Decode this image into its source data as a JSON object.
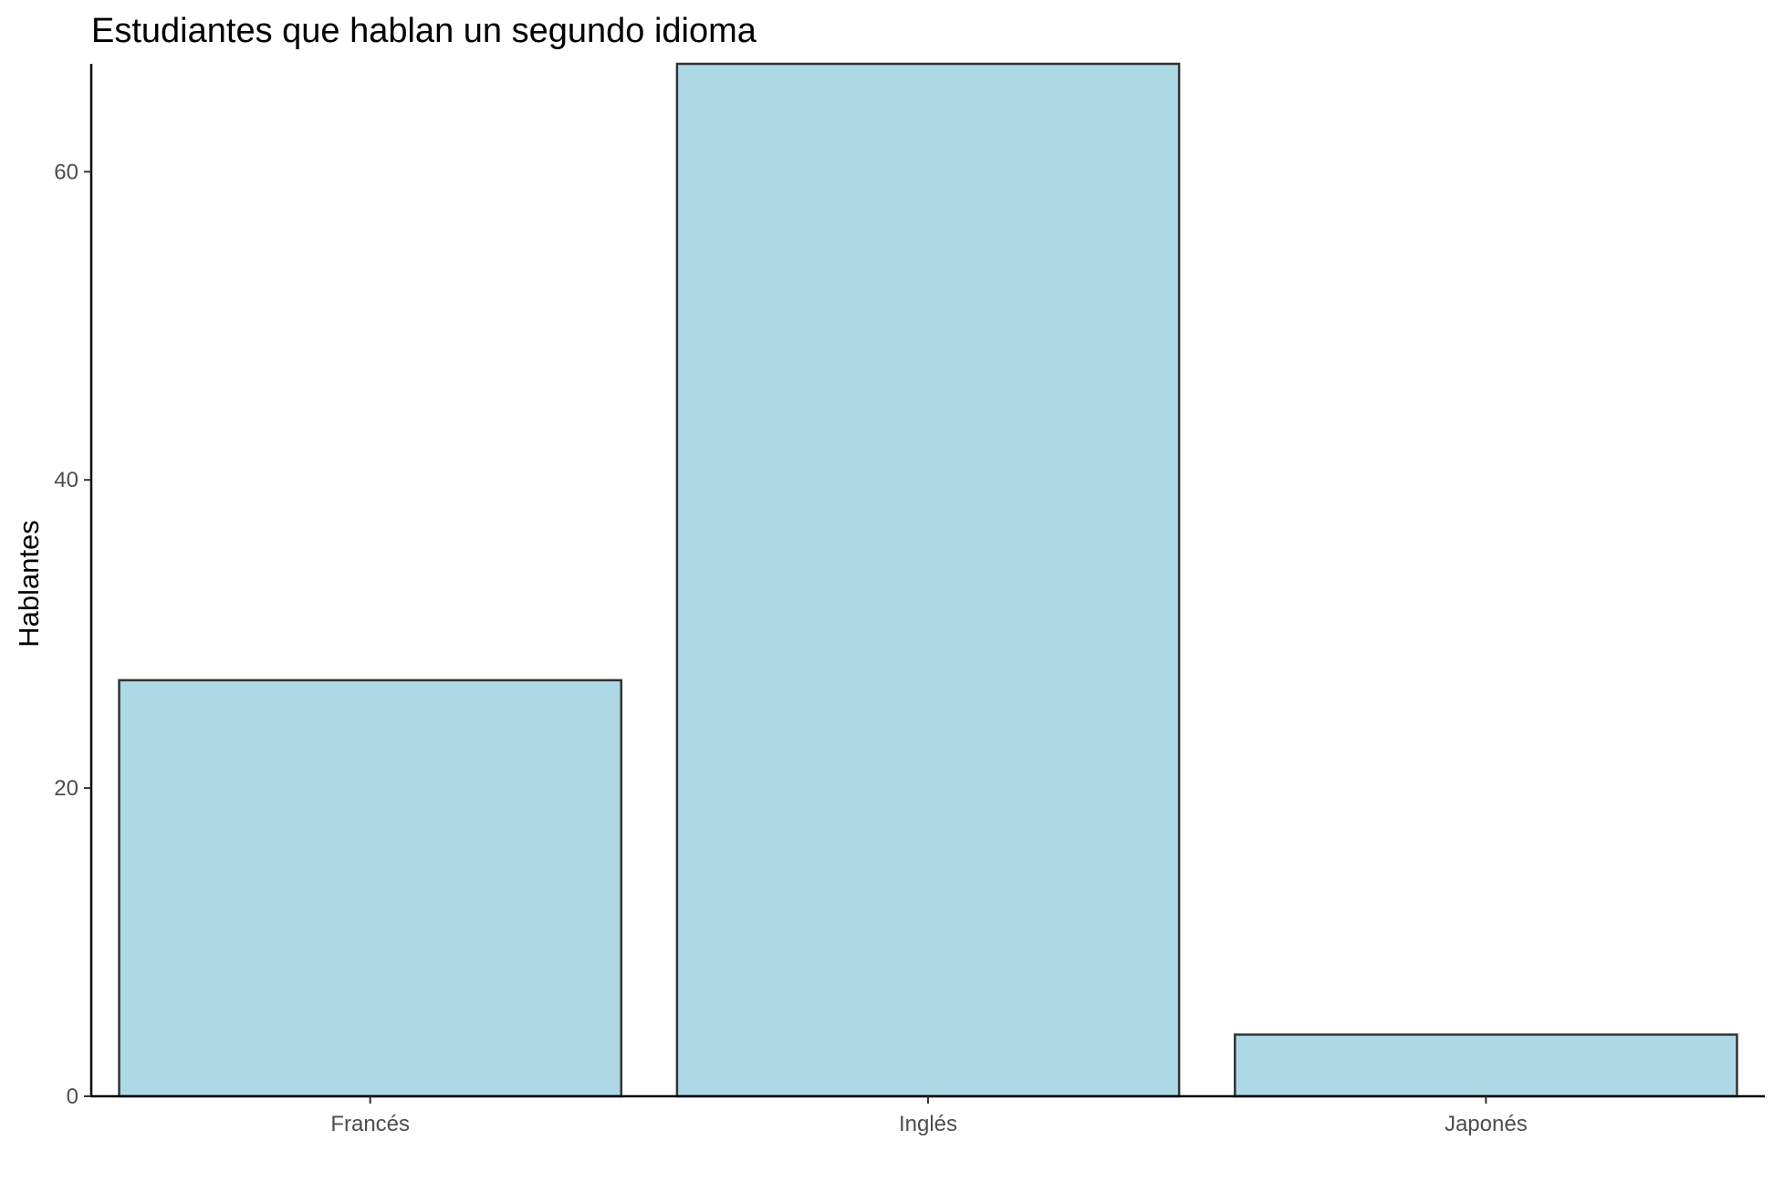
{
  "chart_data": {
    "type": "bar",
    "title": "Estudiantes que hablan un segundo idioma",
    "xlabel": "",
    "ylabel": "Hablantes",
    "categories": [
      "Francés",
      "Inglés",
      "Japonés"
    ],
    "values": [
      27,
      67,
      4
    ],
    "ylim": [
      0,
      67
    ],
    "yticks": [
      0,
      20,
      40,
      60
    ],
    "ytick_labels": [
      "0",
      "20",
      "40",
      "60"
    ],
    "grid": false,
    "legend": "none",
    "colors": {
      "bar_fill": "#ADD8E6",
      "bar_stroke": "#333333",
      "axis": "#000000",
      "tick_label": "#4d4d4d",
      "background": "#ffffff"
    }
  }
}
